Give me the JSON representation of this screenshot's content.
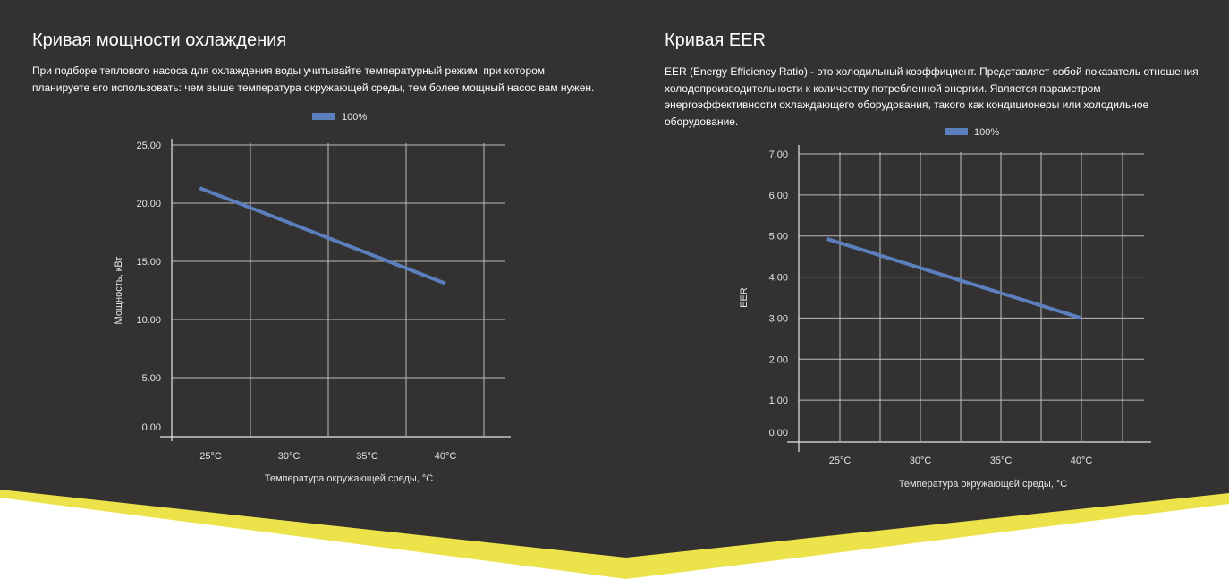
{
  "colors": {
    "background": "#333132",
    "accent_yellow": "#ece24a",
    "line": "#5b7fbd",
    "grid": "#bdbdbd"
  },
  "left": {
    "title": "Кривая мощности охлаждения",
    "description": "При подборе теплового насоса для охлаждения воды учитывайте температурный режим, при котором планируете его использовать: чем выше температура окружающей среды, тем более мощный насос вам нужен."
  },
  "right": {
    "title": "Кривая EER",
    "description": "EER (Energy Efficiency Ratio) - это холодильный коэффициент. Представляет собой показатель отношения холодопроизводительности к количеству потребленной энергии. Является параметром энергоэффективности охлаждающего оборудования, такого как кондиционеры или холодильное оборудование."
  },
  "chart_data": [
    {
      "type": "line",
      "title": "Кривая мощности охлаждения",
      "xlabel": "Температура окружающей среды, °C",
      "ylabel": "Мощность, кВт",
      "legend": [
        "100%"
      ],
      "legend_position": "top-center",
      "x_ticks": [
        "25°C",
        "30°C",
        "35°C",
        "40°C"
      ],
      "x_tick_values": [
        25,
        30,
        35,
        40
      ],
      "y_ticks": [
        "0.00",
        "5.00",
        "10.00",
        "15.00",
        "20.00",
        "25.00"
      ],
      "ylim": [
        0,
        25
      ],
      "grid": true,
      "series": [
        {
          "name": "100%",
          "x": [
            24.3,
            40
          ],
          "y": [
            21.3,
            13.1
          ]
        }
      ]
    },
    {
      "type": "line",
      "title": "Кривая EER",
      "xlabel": "Температура окружающей среды, °C",
      "ylabel": "EER",
      "legend": [
        "100%"
      ],
      "legend_position": "top-center",
      "x_ticks": [
        "25°C",
        "30°C",
        "35°C",
        "40°C"
      ],
      "x_tick_values": [
        25,
        30,
        35,
        40
      ],
      "y_ticks": [
        "0.00",
        "1.00",
        "2.00",
        "3.00",
        "4.00",
        "5.00",
        "6.00",
        "7.00"
      ],
      "ylim": [
        0,
        7
      ],
      "grid": true,
      "series": [
        {
          "name": "100%",
          "x": [
            24.2,
            40
          ],
          "y": [
            4.93,
            3.0
          ]
        }
      ]
    }
  ]
}
